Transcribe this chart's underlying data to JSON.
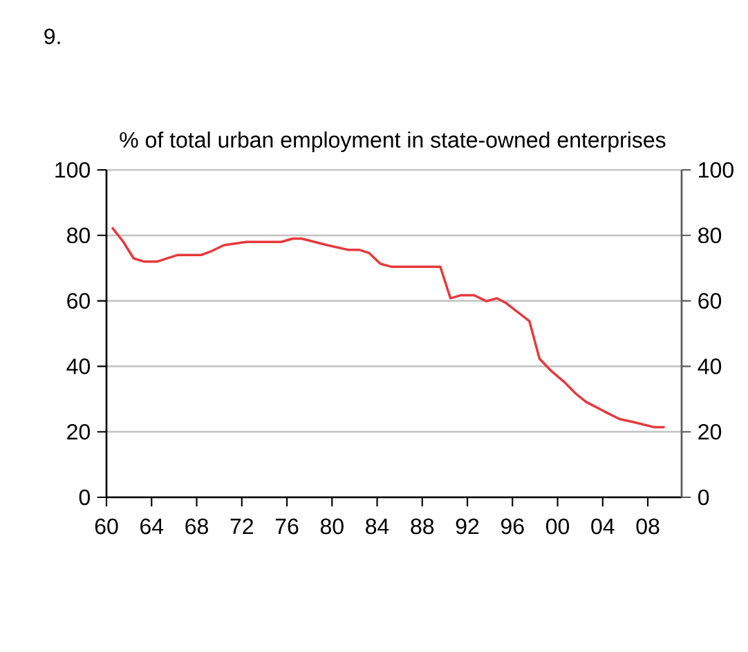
{
  "chart_data": {
    "type": "line",
    "title": "% of total urban employment in state-owned enterprises",
    "annotations": [
      "9."
    ],
    "x": [
      1960.5,
      1961.5,
      1962.4,
      1963.3,
      1964.5,
      1966.3,
      1968.4,
      1969.2,
      1970.4,
      1972.4,
      1975.5,
      1976.5,
      1977.3,
      1979.6,
      1981.4,
      1982.4,
      1983.3,
      1984.3,
      1985.3,
      1989.6,
      1990.5,
      1991.4,
      1992.6,
      1993.7,
      1994.6,
      1995.4,
      1997.5,
      1998.4,
      1999.4,
      2000.6,
      2001.6,
      2002.5,
      2004.1,
      2005.5,
      2006.7,
      2008.6,
      2009.5
    ],
    "values": [
      82.4,
      78,
      73,
      72,
      72,
      74,
      74,
      75,
      77,
      78,
      78,
      79,
      79,
      77,
      75.6,
      75.6,
      74.6,
      71.3,
      70.4,
      70.4,
      60.8,
      61.7,
      61.7,
      59.9,
      60.8,
      59.4,
      53.8,
      42.3,
      38.7,
      35.2,
      31.7,
      29.2,
      26.3,
      23.9,
      23,
      21.4,
      21.4
    ],
    "color": "#e8383d",
    "xlim": [
      1960,
      2011
    ],
    "ylim": [
      0,
      100
    ],
    "y2lim": [
      0,
      100
    ],
    "xticks": [
      {
        "value": 1960,
        "label": "60"
      },
      {
        "value": 1964,
        "label": "64"
      },
      {
        "value": 1968,
        "label": "68"
      },
      {
        "value": 1972,
        "label": "72"
      },
      {
        "value": 1976,
        "label": "76"
      },
      {
        "value": 1980,
        "label": "80"
      },
      {
        "value": 1984,
        "label": "84"
      },
      {
        "value": 1988,
        "label": "88"
      },
      {
        "value": 1992,
        "label": "92"
      },
      {
        "value": 1996,
        "label": "96"
      },
      {
        "value": 2000,
        "label": "00"
      },
      {
        "value": 2004,
        "label": "04"
      },
      {
        "value": 2008,
        "label": "08"
      }
    ],
    "yticks": [
      0,
      20,
      40,
      60,
      80,
      100
    ],
    "y2ticks": [
      0,
      20,
      40,
      60,
      80,
      100
    ],
    "grid": "y",
    "marker": "none",
    "line_style": "solid"
  }
}
